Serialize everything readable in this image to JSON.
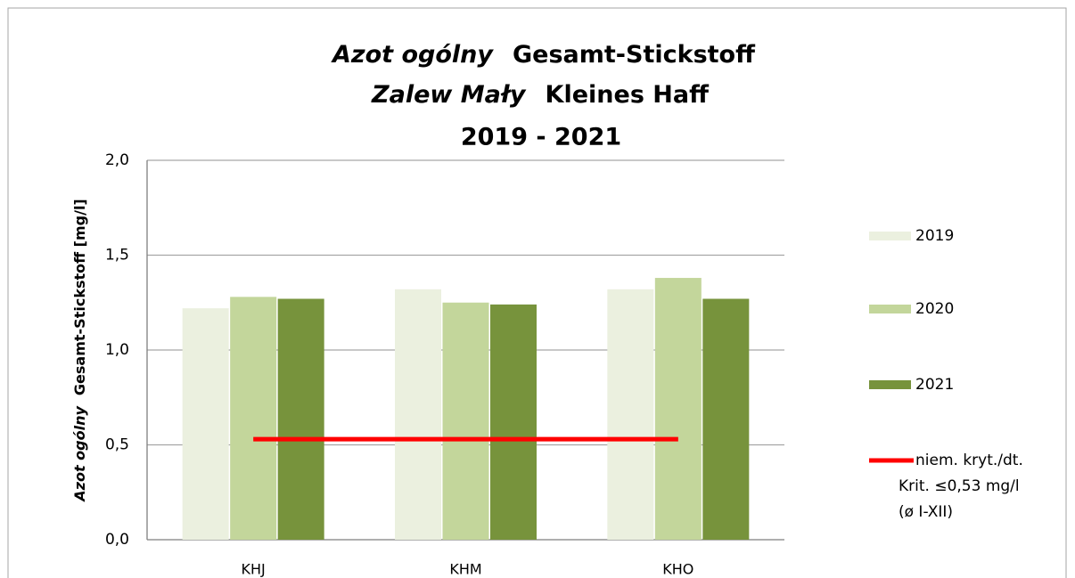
{
  "chart_data": {
    "type": "bar",
    "title": [
      [
        "Azot ogólny",
        "Gesamt-Stickstoff"
      ],
      [
        "Zalew Mały",
        "Kleines Haff"
      ],
      [
        "2019 - 2021"
      ]
    ],
    "ylabel": [
      "Azot ogólny",
      "Gesamt-Stickstoff [mg/l]"
    ],
    "categories": [
      "KHJ",
      "KHM",
      "KHO"
    ],
    "series": [
      {
        "name": "2019",
        "color": "#ebf0df",
        "values": [
          1.22,
          1.32,
          1.32
        ]
      },
      {
        "name": "2020",
        "color": "#c3d69b",
        "values": [
          1.28,
          1.25,
          1.38
        ]
      },
      {
        "name": "2021",
        "color": "#77933c",
        "values": [
          1.27,
          1.24,
          1.27
        ]
      },
      {
        "type": "line",
        "name": [
          "niem. kryt./dt.",
          "Krit. ≤0,53 mg/l",
          "(ø I-XII)"
        ],
        "color": "#ff0000",
        "values": [
          0.53,
          0.53,
          0.53
        ]
      }
    ],
    "ylim": [
      0,
      2
    ],
    "yticks": [
      {
        "value": 0,
        "label": "0,0"
      },
      {
        "value": 0.5,
        "label": "0,5"
      },
      {
        "value": 1,
        "label": "1,0"
      },
      {
        "value": 1.5,
        "label": "1,5"
      },
      {
        "value": 2,
        "label": "2,0"
      }
    ],
    "grid": true,
    "legend": "right"
  }
}
